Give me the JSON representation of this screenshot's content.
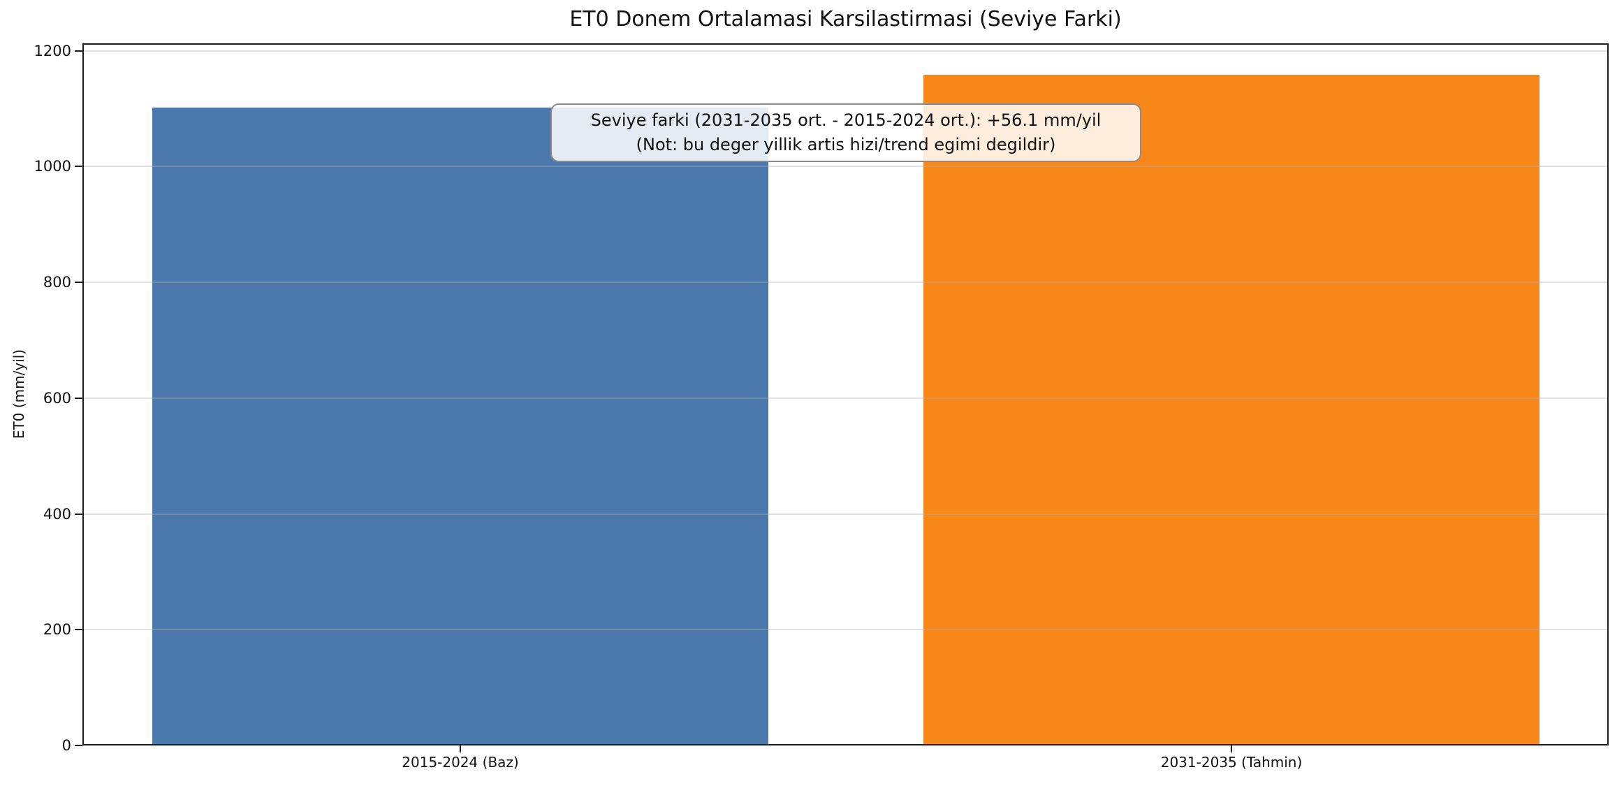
{
  "chart_data": {
    "type": "bar",
    "title": "ET0 Donem Ortalamasi Karsilastirmasi (Seviye Farki)",
    "xlabel": "",
    "ylabel": "ET0 (mm/yil)",
    "categories": [
      "2015-2024 (Baz)",
      "2031-2035 (Tahmin)"
    ],
    "values": [
      1100,
      1156.1
    ],
    "bar_colors": [
      "#4B78AD",
      "#F68718"
    ],
    "ylim": [
      0,
      1213
    ],
    "yticks": [
      0,
      200,
      400,
      600,
      800,
      1000,
      1200
    ],
    "grid": "horizontal-light-gray",
    "legend": "none",
    "annotation": {
      "lines": [
        "Seviye farki (2031-2035 ort. - 2015-2024 ort.): +56.1 mm/yil",
        "(Not: bu deger yillik artis hizi/trend egimi degildir)"
      ],
      "difference_mm_yil": 56.1
    }
  },
  "colors": {
    "baz_bar": "#4B78AD",
    "tahmin_bar": "#F68718",
    "spine": "#1c1c1c",
    "gridline": "#b0b0b0",
    "annotation_border": "#8a8a8a",
    "annotation_fill": "rgba(255,255,255,0.85)"
  }
}
